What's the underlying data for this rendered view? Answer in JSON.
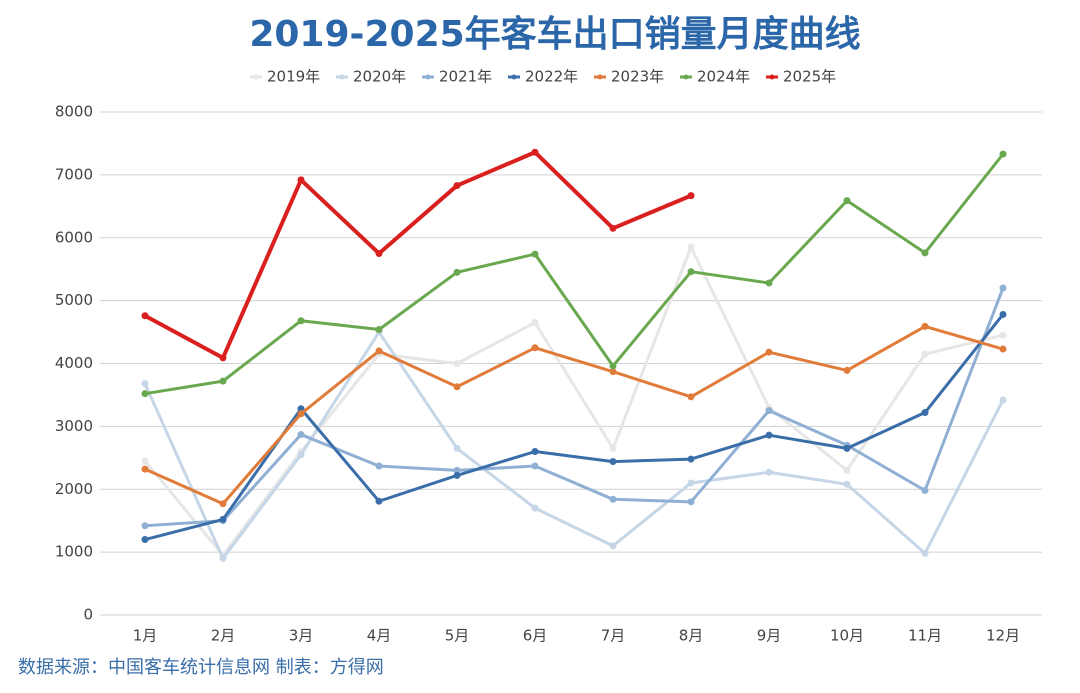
{
  "chart_data": {
    "type": "line",
    "title": "2019-2025年客车出口销量月度曲线",
    "source": "数据来源：中国客车统计信息网 制表：方得网",
    "categories": [
      "1月",
      "2月",
      "3月",
      "4月",
      "5月",
      "6月",
      "7月",
      "8月",
      "9月",
      "10月",
      "11月",
      "12月"
    ],
    "ylim": [
      0,
      8000
    ],
    "yticks": [
      0,
      1000,
      2000,
      3000,
      4000,
      5000,
      6000,
      7000,
      8000
    ],
    "grid": true,
    "legend": "top",
    "series": [
      {
        "name": "2019年",
        "color": "#e6e6e6",
        "values": [
          2450,
          950,
          2600,
          4150,
          4000,
          4650,
          2650,
          5850,
          3300,
          2300,
          4150,
          4450
        ]
      },
      {
        "name": "2020年",
        "color": "#c6d6e6",
        "values": [
          3680,
          900,
          2550,
          4500,
          2650,
          1700,
          1100,
          2100,
          2270,
          2080,
          980,
          3420
        ]
      },
      {
        "name": "2021年",
        "color": "#8fb0d4",
        "values": [
          1420,
          1500,
          2870,
          2370,
          2300,
          2370,
          1840,
          1800,
          3250,
          2700,
          1980,
          5200
        ]
      },
      {
        "name": "2022年",
        "color": "#3a6ea8",
        "values": [
          1200,
          1520,
          3280,
          1810,
          2220,
          2600,
          2440,
          2480,
          2860,
          2650,
          3220,
          4780
        ]
      },
      {
        "name": "2023年",
        "color": "#e07b39",
        "values": [
          2320,
          1770,
          3200,
          4200,
          3630,
          4250,
          3870,
          3470,
          4180,
          3890,
          4590,
          4230
        ]
      },
      {
        "name": "2024年",
        "color": "#6aa84f",
        "values": [
          3520,
          3720,
          4680,
          4540,
          5450,
          5740,
          3960,
          5460,
          5280,
          6590,
          5760,
          7330
        ]
      },
      {
        "name": "2025年",
        "color": "#d9201f",
        "values": [
          4760,
          4090,
          6920,
          5750,
          6830,
          7360,
          6150,
          6670,
          null,
          null,
          null,
          null
        ]
      }
    ]
  }
}
